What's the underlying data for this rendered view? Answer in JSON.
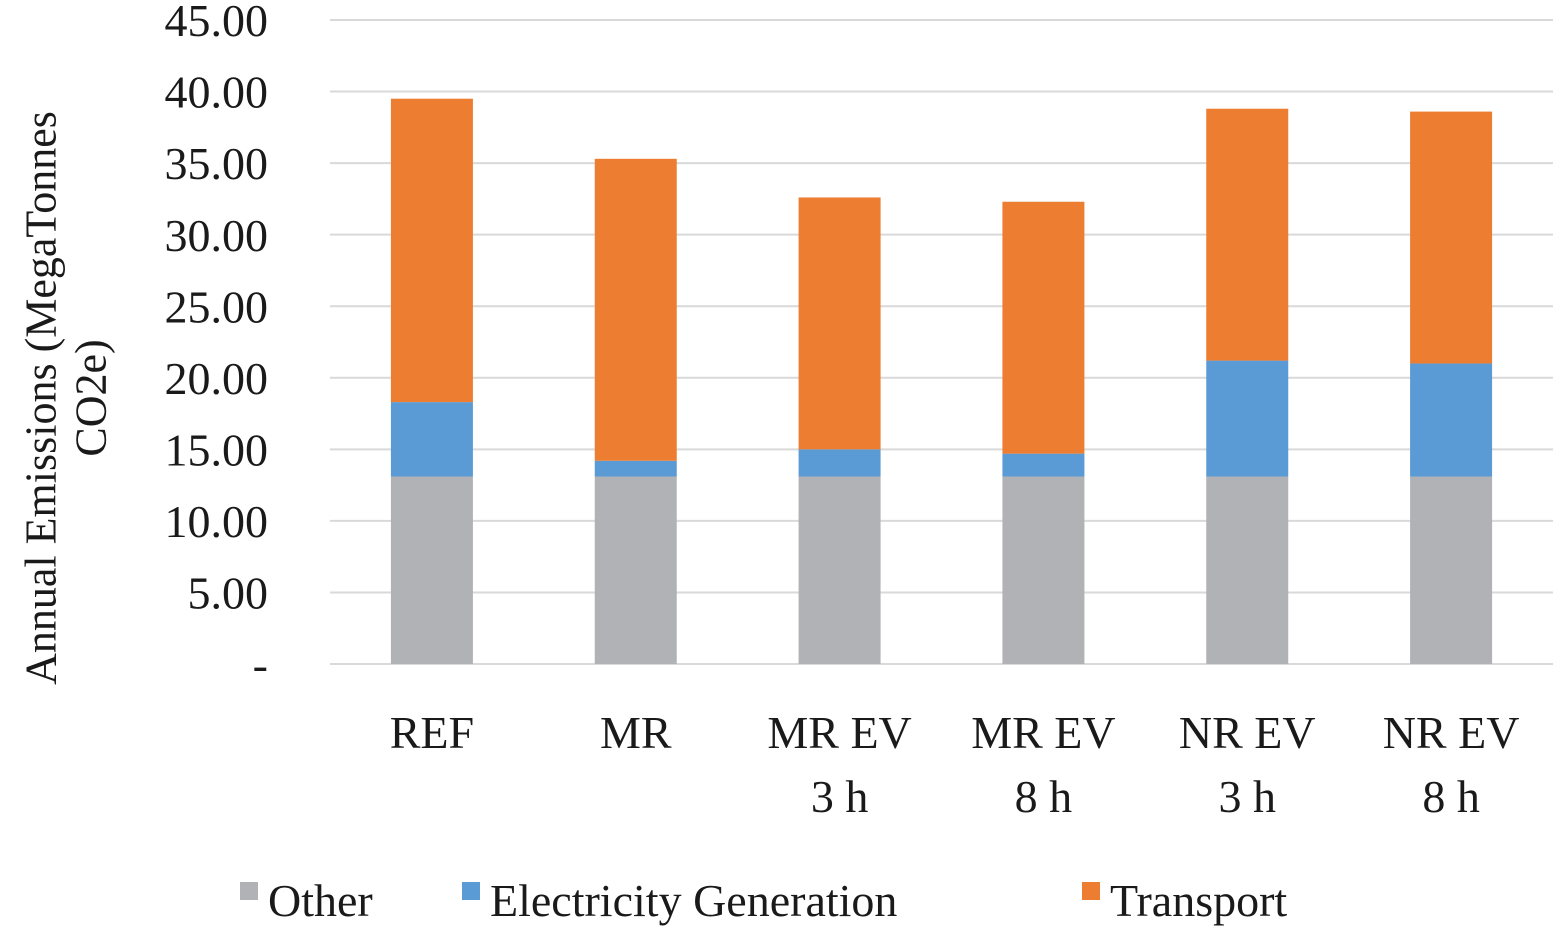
{
  "chart_data": {
    "type": "bar",
    "stacked": true,
    "title": "",
    "xlabel": "",
    "ylabel": [
      "Annual Emissions (MegaTonnes",
      "CO2e)"
    ],
    "ylim": [
      0,
      45
    ],
    "yticks": [
      0,
      5,
      10,
      15,
      20,
      25,
      30,
      35,
      40,
      45
    ],
    "ytick_labels": [
      "-",
      "5.00",
      "10.00",
      "15.00",
      "20.00",
      "25.00",
      "30.00",
      "35.00",
      "40.00",
      "45.00"
    ],
    "grid": true,
    "legend_position": "bottom",
    "categories": [
      [
        "REF"
      ],
      [
        "MR"
      ],
      [
        "MR EV",
        "3 h"
      ],
      [
        "MR EV",
        "8 h"
      ],
      [
        "NR EV",
        "3 h"
      ],
      [
        "NR EV",
        "8 h"
      ]
    ],
    "series": [
      {
        "name": "Other",
        "color": "#b1b2b6",
        "values": [
          13.1,
          13.1,
          13.1,
          13.1,
          13.1,
          13.1
        ]
      },
      {
        "name": "Electricity Generation",
        "color": "#5b9bd5",
        "values": [
          5.2,
          1.1,
          1.9,
          1.6,
          8.1,
          7.9
        ]
      },
      {
        "name": "Transport",
        "color": "#ed7d31",
        "values": [
          21.2,
          21.1,
          17.6,
          17.6,
          17.6,
          17.6
        ]
      }
    ]
  }
}
